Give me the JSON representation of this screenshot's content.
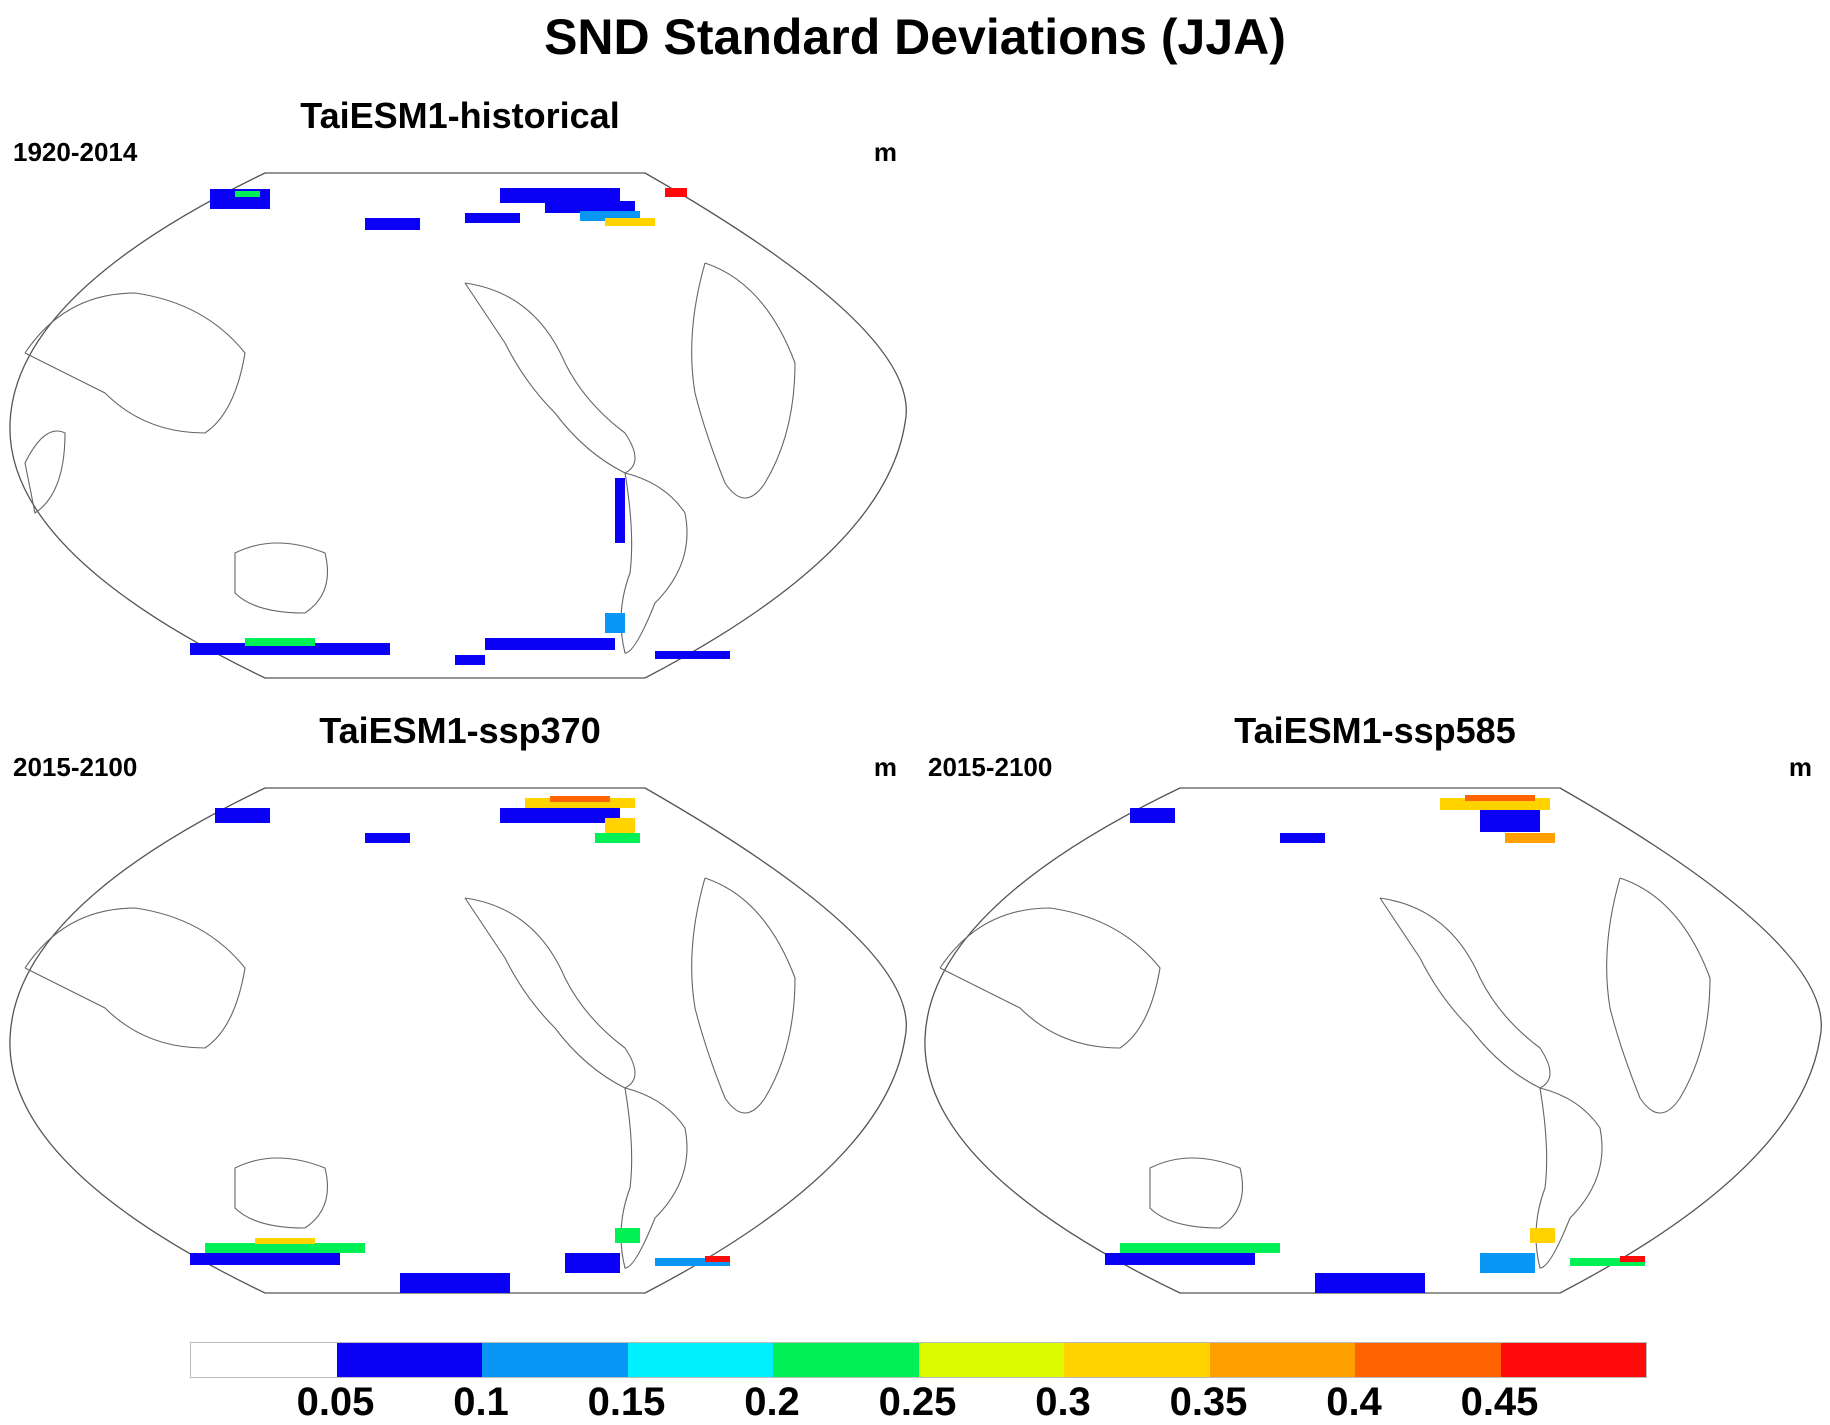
{
  "title": "SND Standard Deviations (JJA)",
  "panels": [
    {
      "title": "TaiESM1-historical",
      "period": "1920-2014",
      "units": "m"
    },
    {
      "title": "TaiESM1-ssp370",
      "period": "2015-2100",
      "units": "m"
    },
    {
      "title": "TaiESM1-ssp585",
      "period": "2015-2100",
      "units": "m"
    }
  ],
  "colorbar": {
    "labels": [
      "0.05",
      "0.1",
      "0.15",
      "0.2",
      "0.25",
      "0.3",
      "0.35",
      "0.4",
      "0.45"
    ],
    "colors": [
      "#ffffff",
      "#0a00f5",
      "#0a96f5",
      "#00f0ff",
      "#00f055",
      "#dcfa00",
      "#ffd200",
      "#ffa000",
      "#ff6400",
      "#ff0a0a"
    ]
  }
}
